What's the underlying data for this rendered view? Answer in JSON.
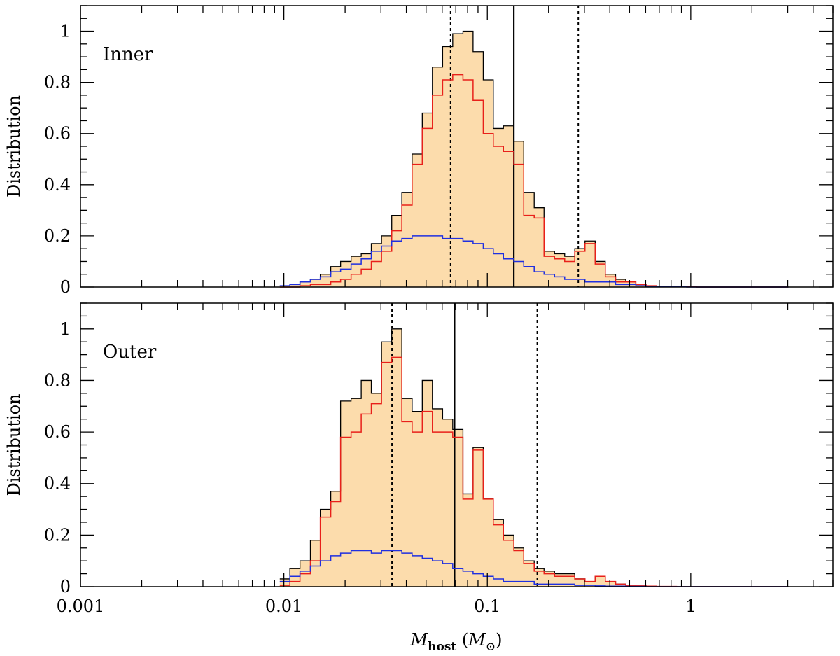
{
  "chart_data": [
    {
      "type": "histogram",
      "panel_label": "Inner",
      "xlabel": "M_host (M_⊙)",
      "ylabel": "Distribution",
      "xscale": "log",
      "xlim": [
        0.001,
        5.0
      ],
      "ylim": [
        0,
        1.1
      ],
      "x_tick_labels": [
        "0.001",
        "0.01",
        "0.1",
        "1"
      ],
      "y_tick_labels": [
        "0",
        "0.2",
        "0.4",
        "0.6",
        "0.8",
        "1"
      ],
      "bin_edges": [
        0.00955,
        0.0107,
        0.012,
        0.0135,
        0.0151,
        0.017,
        0.019,
        0.0214,
        0.024,
        0.0269,
        0.0302,
        0.0339,
        0.038,
        0.0427,
        0.0479,
        0.0537,
        0.0603,
        0.0676,
        0.0759,
        0.0851,
        0.0955,
        0.107,
        0.12,
        0.135,
        0.151,
        0.17,
        0.19,
        0.214,
        0.24,
        0.269,
        0.302,
        0.339,
        0.38,
        0.427,
        0.479,
        0.537,
        0.603,
        0.676,
        0.759,
        0.851,
        0.955,
        1.07,
        1.2,
        1.35,
        1.51,
        1.7,
        1.9,
        2.14,
        2.4,
        2.69,
        3.02
      ],
      "series": [
        {
          "kind": "total",
          "color": "#000000",
          "fill": "#fcdcac",
          "values": [
            0.005,
            0.01,
            0.02,
            0.03,
            0.05,
            0.08,
            0.1,
            0.12,
            0.13,
            0.17,
            0.2,
            0.28,
            0.37,
            0.52,
            0.68,
            0.86,
            0.94,
            0.99,
            1.0,
            0.92,
            0.81,
            0.62,
            0.63,
            0.57,
            0.37,
            0.31,
            0.14,
            0.13,
            0.12,
            0.15,
            0.18,
            0.1,
            0.05,
            0.03,
            0.02,
            0.01,
            0.005,
            0.003,
            0.002,
            0.001,
            0.001,
            0.0,
            0.0,
            0.0,
            0.0,
            0.0,
            0.0,
            0.0,
            0.0,
            0.0
          ]
        },
        {
          "kind": "red component",
          "color": "#e8201a",
          "values": [
            0.0,
            0.0,
            0.005,
            0.01,
            0.01,
            0.02,
            0.03,
            0.05,
            0.07,
            0.1,
            0.14,
            0.22,
            0.32,
            0.48,
            0.62,
            0.75,
            0.81,
            0.83,
            0.81,
            0.73,
            0.6,
            0.55,
            0.53,
            0.48,
            0.28,
            0.27,
            0.12,
            0.11,
            0.1,
            0.14,
            0.17,
            0.09,
            0.04,
            0.02,
            0.02,
            0.01,
            0.005,
            0.003,
            0.002,
            0.001,
            0.001,
            0.0,
            0.0,
            0.0,
            0.0,
            0.0,
            0.0,
            0.0,
            0.0,
            0.0
          ]
        },
        {
          "kind": "blue component",
          "color": "#1f2fe0",
          "values": [
            0.005,
            0.01,
            0.02,
            0.03,
            0.04,
            0.06,
            0.07,
            0.09,
            0.11,
            0.14,
            0.16,
            0.18,
            0.19,
            0.2,
            0.2,
            0.2,
            0.19,
            0.19,
            0.18,
            0.17,
            0.15,
            0.13,
            0.11,
            0.1,
            0.08,
            0.06,
            0.05,
            0.04,
            0.03,
            0.03,
            0.02,
            0.02,
            0.02,
            0.01,
            0.01,
            0.005,
            0.003,
            0.002,
            0.001,
            0.001,
            0.0,
            0.0,
            0.0,
            0.0,
            0.0,
            0.0,
            0.0,
            0.0,
            0.0,
            0.0
          ]
        }
      ],
      "vertical_lines": [
        {
          "x": 0.066,
          "style": "dotted"
        },
        {
          "x": 0.135,
          "style": "solid"
        },
        {
          "x": 0.28,
          "style": "dotted"
        }
      ]
    },
    {
      "type": "histogram",
      "panel_label": "Outer",
      "xlabel": "M_host (M_⊙)",
      "ylabel": "Distribution",
      "xscale": "log",
      "xlim": [
        0.001,
        5.0
      ],
      "ylim": [
        0,
        1.1
      ],
      "x_tick_labels": [
        "0.001",
        "0.01",
        "0.1",
        "1"
      ],
      "y_tick_labels": [
        "0",
        "0.2",
        "0.4",
        "0.6",
        "0.8",
        "1"
      ],
      "bin_edges": [
        0.00955,
        0.0107,
        0.012,
        0.0135,
        0.0151,
        0.017,
        0.019,
        0.0214,
        0.024,
        0.0269,
        0.0302,
        0.0339,
        0.038,
        0.0427,
        0.0479,
        0.0537,
        0.0603,
        0.0676,
        0.0759,
        0.0851,
        0.0955,
        0.107,
        0.12,
        0.135,
        0.151,
        0.17,
        0.19,
        0.214,
        0.24,
        0.269,
        0.302,
        0.339,
        0.38,
        0.427,
        0.479,
        0.537,
        0.603,
        0.676,
        0.759,
        0.851,
        0.955,
        1.07,
        1.2,
        1.35,
        1.51,
        1.7,
        1.9,
        2.14,
        2.4,
        2.69,
        3.02
      ],
      "series": [
        {
          "kind": "total",
          "color": "#000000",
          "fill": "#fcdcac",
          "values": [
            0.03,
            0.07,
            0.1,
            0.18,
            0.3,
            0.37,
            0.72,
            0.73,
            0.8,
            0.75,
            0.95,
            1.0,
            0.73,
            0.68,
            0.8,
            0.69,
            0.65,
            0.61,
            0.36,
            0.54,
            0.34,
            0.26,
            0.2,
            0.15,
            0.1,
            0.07,
            0.06,
            0.05,
            0.05,
            0.03,
            0.02,
            0.04,
            0.02,
            0.01,
            0.005,
            0.003,
            0.002,
            0.001,
            0.001,
            0.0,
            0.0,
            0.0,
            0.0,
            0.0,
            0.0,
            0.0,
            0.0,
            0.0,
            0.0,
            0.0
          ]
        },
        {
          "kind": "red component",
          "color": "#e8201a",
          "values": [
            0.005,
            0.02,
            0.05,
            0.1,
            0.27,
            0.33,
            0.58,
            0.6,
            0.67,
            0.71,
            0.87,
            0.89,
            0.64,
            0.6,
            0.68,
            0.6,
            0.6,
            0.58,
            0.34,
            0.53,
            0.34,
            0.24,
            0.18,
            0.14,
            0.09,
            0.06,
            0.05,
            0.04,
            0.04,
            0.03,
            0.02,
            0.04,
            0.02,
            0.01,
            0.005,
            0.003,
            0.002,
            0.001,
            0.001,
            0.0,
            0.0,
            0.0,
            0.0,
            0.0,
            0.0,
            0.0,
            0.0,
            0.0,
            0.0,
            0.0
          ]
        },
        {
          "kind": "blue component",
          "color": "#1f2fe0",
          "values": [
            0.02,
            0.04,
            0.06,
            0.08,
            0.1,
            0.12,
            0.13,
            0.14,
            0.14,
            0.13,
            0.14,
            0.14,
            0.13,
            0.12,
            0.11,
            0.1,
            0.09,
            0.07,
            0.06,
            0.05,
            0.04,
            0.03,
            0.02,
            0.02,
            0.02,
            0.01,
            0.01,
            0.01,
            0.01,
            0.005,
            0.005,
            0.003,
            0.002,
            0.002,
            0.001,
            0.001,
            0.0,
            0.0,
            0.0,
            0.0,
            0.0,
            0.0,
            0.0,
            0.0,
            0.0,
            0.0,
            0.0,
            0.0,
            0.0,
            0.0
          ]
        }
      ],
      "vertical_lines": [
        {
          "x": 0.034,
          "style": "dotted"
        },
        {
          "x": 0.069,
          "style": "solid"
        },
        {
          "x": 0.176,
          "style": "dotted"
        }
      ]
    }
  ]
}
